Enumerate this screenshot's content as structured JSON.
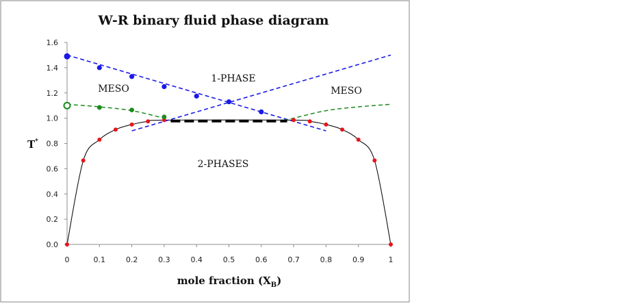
{
  "chart_data": {
    "type": "scatter",
    "title": "W-R binary fluid phase diagram",
    "xlabel": "mole fraction (X",
    "xlabel_sub": "B",
    "xlabel_close": ")",
    "ylabel": "T",
    "ylabel_sup": "*",
    "xlim": [
      0,
      1
    ],
    "ylim": [
      0,
      1.6
    ],
    "xticks": [
      "0",
      "0.1",
      "0.2",
      "0.3",
      "0.4",
      "0.5",
      "0.6",
      "0.7",
      "0.8",
      "0.9",
      "1"
    ],
    "yticks": [
      "0.0",
      "0.2",
      "0.4",
      "0.6",
      "0.8",
      "1.0",
      "1.2",
      "1.4",
      "1.6"
    ],
    "regions": {
      "one_phase": "1-PHASE",
      "meso_left": "MESO",
      "meso_right": "MESO",
      "two_phases": "2-PHASES"
    },
    "series": [
      {
        "name": "coexistence",
        "color": "#e8141b",
        "points": [
          [
            0,
            0.0
          ],
          [
            0.05,
            0.665
          ],
          [
            0.1,
            0.83
          ],
          [
            0.15,
            0.91
          ],
          [
            0.2,
            0.95
          ],
          [
            0.25,
            0.975
          ],
          [
            0.3,
            0.985
          ],
          [
            0.7,
            0.985
          ],
          [
            0.75,
            0.975
          ],
          [
            0.8,
            0.95
          ],
          [
            0.85,
            0.91
          ],
          [
            0.9,
            0.83
          ],
          [
            0.95,
            0.665
          ],
          [
            1,
            0.0
          ]
        ]
      },
      {
        "name": "blue_line_points",
        "color": "#1a1ae6",
        "points": [
          [
            0,
            1.49
          ],
          [
            0.1,
            1.4
          ],
          [
            0.2,
            1.33
          ],
          [
            0.3,
            1.25
          ],
          [
            0.4,
            1.175
          ],
          [
            0.5,
            1.13
          ],
          [
            0.6,
            1.05
          ]
        ]
      },
      {
        "name": "green_line_points",
        "color": "#1e8a1e",
        "points": [
          [
            0,
            1.1
          ],
          [
            0.1,
            1.085
          ],
          [
            0.2,
            1.065
          ],
          [
            0.3,
            1.01
          ]
        ]
      },
      {
        "name": "blue_dashed_descending",
        "color": "#1a1ae6",
        "points": [
          [
            0,
            1.5
          ],
          [
            0.8,
            0.9
          ]
        ]
      },
      {
        "name": "blue_dashed_ascending",
        "color": "#1a1ae6",
        "points": [
          [
            0.2,
            0.9
          ],
          [
            1,
            1.5
          ]
        ]
      },
      {
        "name": "green_dashed_left",
        "color": "#1e8a1e",
        "points": [
          [
            0,
            1.11
          ],
          [
            0.1,
            1.09
          ],
          [
            0.2,
            1.06
          ],
          [
            0.3,
            1.0
          ]
        ]
      },
      {
        "name": "green_dashed_right",
        "color": "#1e8a1e",
        "points": [
          [
            0.67,
            0.985
          ],
          [
            0.7,
            1.0
          ],
          [
            0.8,
            1.06
          ],
          [
            0.9,
            1.09
          ],
          [
            1,
            1.11
          ]
        ]
      },
      {
        "name": "tie_line",
        "color": "#000000",
        "points": [
          [
            0.32,
            0.978
          ],
          [
            0.68,
            0.978
          ]
        ]
      }
    ]
  }
}
